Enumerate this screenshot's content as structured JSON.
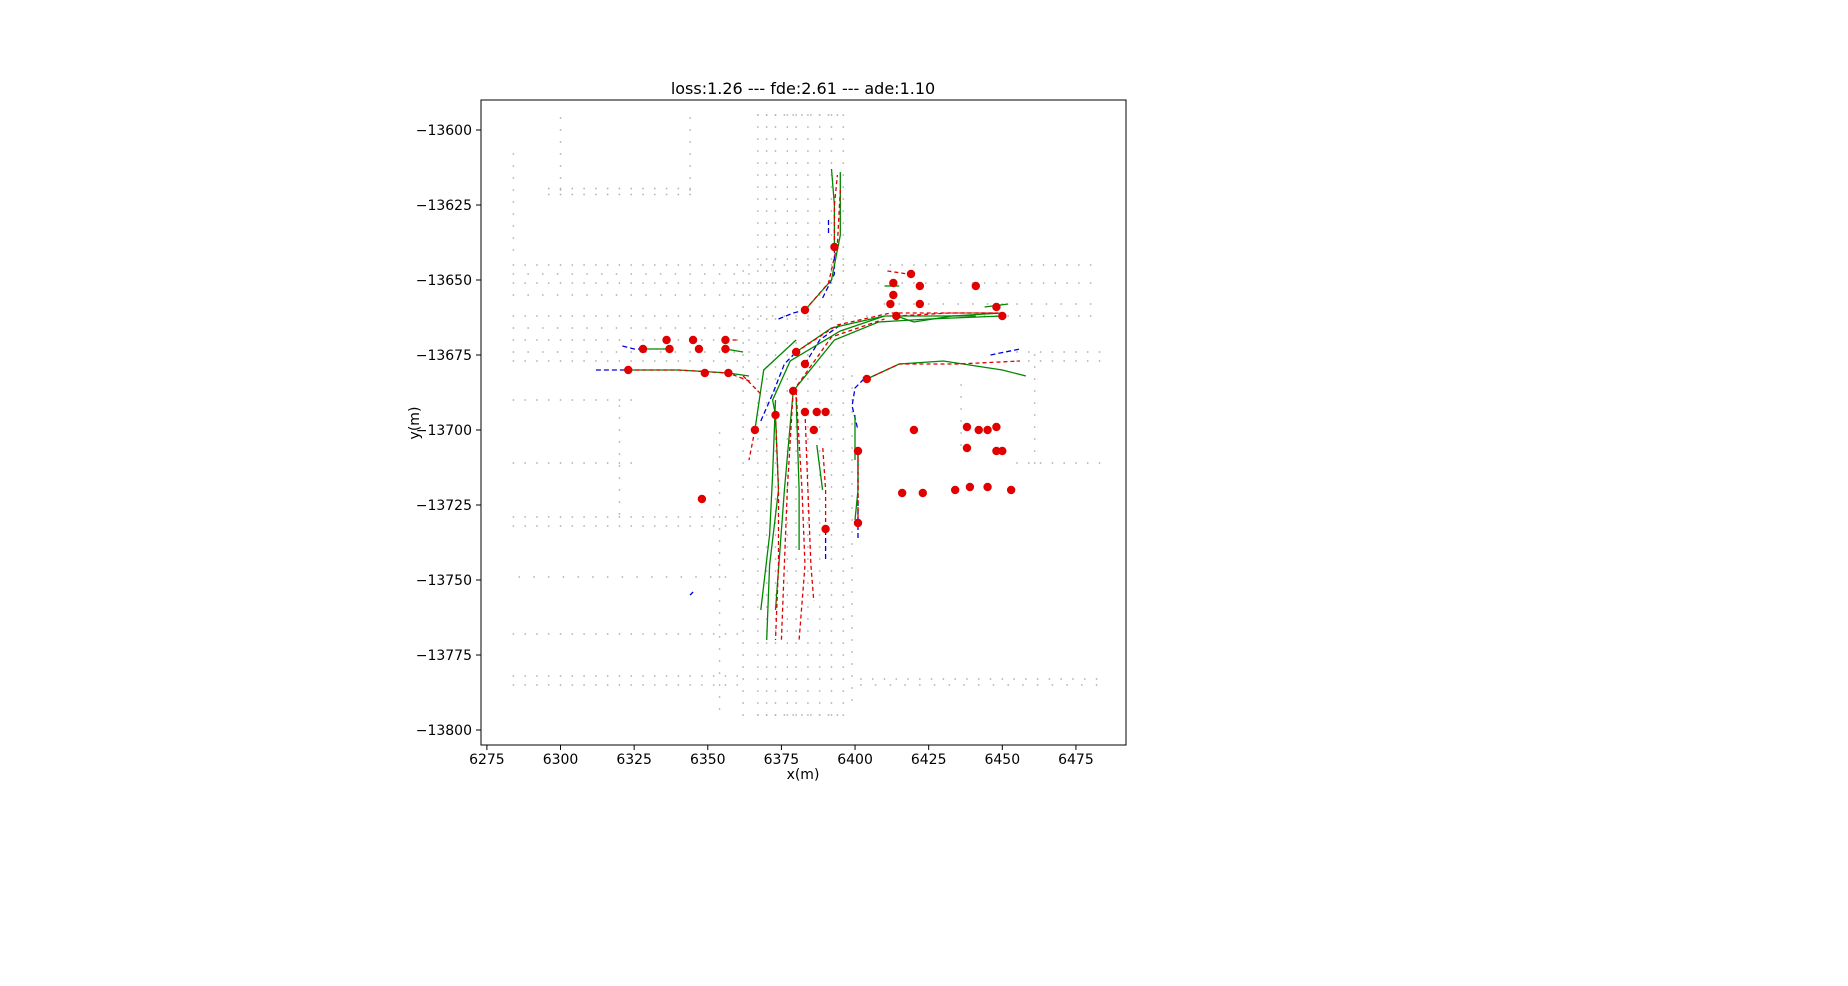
{
  "chart_data": {
    "type": "scatter",
    "title": "loss:1.26 --- fde:2.61 --- ade:1.10",
    "xlabel": "x(m)",
    "ylabel": "y(m)",
    "xlim": [
      6273,
      6492
    ],
    "ylim": [
      -13805,
      -13590
    ],
    "xticks": [
      6275,
      6300,
      6325,
      6350,
      6375,
      6400,
      6425,
      6450,
      6475
    ],
    "yticks": [
      -13600,
      -13625,
      -13650,
      -13675,
      -13700,
      -13725,
      -13750,
      -13775,
      -13800
    ],
    "grid": false,
    "colors": {
      "map": "#b0b0b0",
      "agent": "#e00000",
      "history": "#0000dd",
      "ground_truth": "#008800",
      "prediction": "#e00000"
    },
    "map_dots": {
      "x_rows": [
        {
          "y": -13645.0,
          "x_from": 6284,
          "x_to": 6483,
          "step": 4
        },
        {
          "y": -13648.0,
          "x_from": 6284,
          "x_to": 6365,
          "step": 5
        },
        {
          "y": -13651.0,
          "x_from": 6284,
          "x_to": 6483,
          "step": 4
        },
        {
          "y": -13655.0,
          "x_from": 6284,
          "x_to": 6365,
          "step": 5
        },
        {
          "y": -13658.0,
          "x_from": 6410,
          "x_to": 6483,
          "step": 5
        },
        {
          "y": -13662.0,
          "x_from": 6284,
          "x_to": 6483,
          "step": 4
        },
        {
          "y": -13666.0,
          "x_from": 6284,
          "x_to": 6365,
          "step": 5
        },
        {
          "y": -13670.0,
          "x_from": 6284,
          "x_to": 6365,
          "step": 4
        },
        {
          "y": -13674.0,
          "x_from": 6284,
          "x_to": 6365,
          "step": 5
        },
        {
          "y": -13674.0,
          "x_from": 6455,
          "x_to": 6483,
          "step": 4
        },
        {
          "y": -13677.0,
          "x_from": 6284,
          "x_to": 6365,
          "step": 4
        },
        {
          "y": -13677.0,
          "x_from": 6455,
          "x_to": 6483,
          "step": 4
        },
        {
          "y": -13690.0,
          "x_from": 6284,
          "x_to": 6325,
          "step": 4
        },
        {
          "y": -13711.0,
          "x_from": 6284,
          "x_to": 6325,
          "step": 4
        },
        {
          "y": -13711.0,
          "x_from": 6455,
          "x_to": 6483,
          "step": 4
        },
        {
          "y": -13729.0,
          "x_from": 6284,
          "x_to": 6360,
          "step": 4
        },
        {
          "y": -13732.0,
          "x_from": 6284,
          "x_to": 6360,
          "step": 4
        },
        {
          "y": -13749.0,
          "x_from": 6286,
          "x_to": 6360,
          "step": 5
        },
        {
          "y": -13768.0,
          "x_from": 6284,
          "x_to": 6360,
          "step": 4
        },
        {
          "y": -13782.0,
          "x_from": 6284,
          "x_to": 6360,
          "step": 4
        },
        {
          "y": -13785.0,
          "x_from": 6284,
          "x_to": 6360,
          "step": 4
        },
        {
          "y": -13783.0,
          "x_from": 6402,
          "x_to": 6483,
          "step": 4
        },
        {
          "y": -13785.0,
          "x_from": 6402,
          "x_to": 6483,
          "step": 5
        },
        {
          "y": -13619.5,
          "x_from": 6296,
          "x_to": 6345,
          "step": 4
        },
        {
          "y": -13621.5,
          "x_from": 6296,
          "x_to": 6345,
          "step": 4
        },
        {
          "y": -13595.0,
          "x_from": 6367,
          "x_to": 6395,
          "step": 3
        },
        {
          "y": -13795.0,
          "x_from": 6367,
          "x_to": 6395,
          "step": 3
        }
      ],
      "y_cols": [
        {
          "x": 6367.0,
          "y_from": -13795,
          "y_to": -13595,
          "step": 4
        },
        {
          "x": 6370.0,
          "y_from": -13795,
          "y_to": -13595,
          "step": 4
        },
        {
          "x": 6373.0,
          "y_from": -13795,
          "y_to": -13595,
          "step": 4
        },
        {
          "x": 6377.0,
          "y_from": -13795,
          "y_to": -13595,
          "step": 4
        },
        {
          "x": 6380.0,
          "y_from": -13795,
          "y_to": -13595,
          "step": 4
        },
        {
          "x": 6384.0,
          "y_from": -13795,
          "y_to": -13595,
          "step": 4
        },
        {
          "x": 6388.0,
          "y_from": -13795,
          "y_to": -13595,
          "step": 4
        },
        {
          "x": 6392.0,
          "y_from": -13795,
          "y_to": -13595,
          "step": 4
        },
        {
          "x": 6396.0,
          "y_from": -13795,
          "y_to": -13595,
          "step": 4
        },
        {
          "x": 6362.0,
          "y_from": -13795,
          "y_to": -13645,
          "step": 4
        },
        {
          "x": 6354.0,
          "y_from": -13793,
          "y_to": -13700,
          "step": 4
        },
        {
          "x": 6399.0,
          "y_from": -13790,
          "y_to": -13680,
          "step": 4
        },
        {
          "x": 6284.0,
          "y_from": -13640,
          "y_to": -13605,
          "step": 4
        },
        {
          "x": 6344.0,
          "y_from": -13620,
          "y_to": -13595,
          "step": 4
        },
        {
          "x": 6300.0,
          "y_from": -13620,
          "y_to": -13595,
          "step": 4
        },
        {
          "x": 6320.0,
          "y_from": -13728,
          "y_to": -13690,
          "step": 4
        },
        {
          "x": 6461.0,
          "y_from": -13711,
          "y_to": -13672,
          "step": 4
        },
        {
          "x": 6436.0,
          "y_from": -13705,
          "y_to": -13683,
          "step": 4
        }
      ]
    },
    "agents": [
      [
        6393,
        -13639
      ],
      [
        6383,
        -13660
      ],
      [
        6380,
        -13674
      ],
      [
        6383,
        -13678
      ],
      [
        6379,
        -13687
      ],
      [
        6373,
        -13695
      ],
      [
        6366,
        -13700
      ],
      [
        6328,
        -13673
      ],
      [
        6337,
        -13673
      ],
      [
        6336,
        -13670
      ],
      [
        6345,
        -13670
      ],
      [
        6347,
        -13673
      ],
      [
        6356,
        -13670
      ],
      [
        6356,
        -13673
      ],
      [
        6323,
        -13680
      ],
      [
        6349,
        -13681
      ],
      [
        6357,
        -13681
      ],
      [
        6401,
        -13707
      ],
      [
        6401,
        -13731
      ],
      [
        6390,
        -13733
      ],
      [
        6383,
        -13694
      ],
      [
        6387,
        -13694
      ],
      [
        6390,
        -13694
      ],
      [
        6386,
        -13700
      ],
      [
        6348,
        -13723
      ],
      [
        6419,
        -13648
      ],
      [
        6413,
        -13651
      ],
      [
        6422,
        -13652
      ],
      [
        6441,
        -13652
      ],
      [
        6413,
        -13655
      ],
      [
        6412,
        -13658
      ],
      [
        6422,
        -13658
      ],
      [
        6414,
        -13662
      ],
      [
        6448,
        -13659
      ],
      [
        6450,
        -13662
      ],
      [
        6404,
        -13683
      ],
      [
        6420,
        -13700
      ],
      [
        6438,
        -13699
      ],
      [
        6442,
        -13700
      ],
      [
        6445,
        -13700
      ],
      [
        6448,
        -13699
      ],
      [
        6438,
        -13706
      ],
      [
        6448,
        -13707
      ],
      [
        6450,
        -13707
      ],
      [
        6416,
        -13721
      ],
      [
        6423,
        -13721
      ],
      [
        6434,
        -13720
      ],
      [
        6439,
        -13719
      ],
      [
        6445,
        -13719
      ],
      [
        6453,
        -13720
      ]
    ],
    "history_tracks": [
      [
        [
          6389,
          -13656
        ],
        [
          6393,
          -13648
        ],
        [
          6393,
          -13639
        ]
      ],
      [
        [
          6374,
          -13663
        ],
        [
          6379,
          -13661
        ],
        [
          6383,
          -13660
        ]
      ],
      [
        [
          6391,
          -13630
        ],
        [
          6391,
          -13635
        ]
      ],
      [
        [
          6312,
          -13680
        ],
        [
          6317,
          -13680
        ],
        [
          6323,
          -13680
        ]
      ],
      [
        [
          6321,
          -13672
        ],
        [
          6325,
          -13673
        ],
        [
          6328,
          -13673
        ]
      ],
      [
        [
          6368,
          -13697
        ],
        [
          6372,
          -13688
        ],
        [
          6376,
          -13678
        ],
        [
          6380,
          -13674
        ]
      ],
      [
        [
          6383,
          -13678
        ],
        [
          6388,
          -13670
        ],
        [
          6395,
          -13665
        ]
      ],
      [
        [
          6401,
          -13736
        ],
        [
          6401,
          -13720
        ],
        [
          6401,
          -13707
        ]
      ],
      [
        [
          6403,
          -13683
        ],
        [
          6400,
          -13686
        ],
        [
          6399,
          -13692
        ],
        [
          6401,
          -13700
        ]
      ],
      [
        [
          6390,
          -13743
        ],
        [
          6390,
          -13736
        ],
        [
          6390,
          -13733
        ]
      ],
      [
        [
          6344,
          -13755
        ],
        [
          6345,
          -13754
        ]
      ],
      [
        [
          6446,
          -13675
        ],
        [
          6456,
          -13673
        ]
      ]
    ],
    "ground_truth_tracks": [
      [
        [
          6393,
          -13639
        ],
        [
          6393,
          -13625
        ],
        [
          6392,
          -13613
        ]
      ],
      [
        [
          6383,
          -13660
        ],
        [
          6392,
          -13650
        ],
        [
          6395,
          -13635
        ],
        [
          6395,
          -13614
        ]
      ],
      [
        [
          6380,
          -13674
        ],
        [
          6392,
          -13666
        ],
        [
          6410,
          -13662
        ],
        [
          6425,
          -13662
        ],
        [
          6441,
          -13662
        ]
      ],
      [
        [
          6379,
          -13687
        ],
        [
          6393,
          -13670
        ],
        [
          6408,
          -13664
        ],
        [
          6425,
          -13663
        ],
        [
          6450,
          -13662
        ]
      ],
      [
        [
          6373,
          -13695
        ],
        [
          6372,
          -13690
        ],
        [
          6378,
          -13677
        ],
        [
          6395,
          -13667
        ],
        [
          6410,
          -13662
        ]
      ],
      [
        [
          6373,
          -13695
        ],
        [
          6374,
          -13720
        ],
        [
          6371,
          -13745
        ],
        [
          6370,
          -13770
        ]
      ],
      [
        [
          6379,
          -13687
        ],
        [
          6376,
          -13720
        ],
        [
          6373,
          -13760
        ]
      ],
      [
        [
          6380,
          -13689
        ],
        [
          6381,
          -13720
        ],
        [
          6381,
          -13740
        ]
      ],
      [
        [
          6373,
          -13690
        ],
        [
          6372,
          -13715
        ],
        [
          6371,
          -13735
        ],
        [
          6368,
          -13760
        ]
      ],
      [
        [
          6366,
          -13700
        ],
        [
          6369,
          -13680
        ],
        [
          6380,
          -13670
        ]
      ],
      [
        [
          6323,
          -13680
        ],
        [
          6340,
          -13680
        ],
        [
          6357,
          -13681
        ],
        [
          6364,
          -13682
        ]
      ],
      [
        [
          6328,
          -13673
        ],
        [
          6337,
          -13673
        ]
      ],
      [
        [
          6356,
          -13673
        ],
        [
          6362,
          -13674
        ]
      ],
      [
        [
          6404,
          -13683
        ],
        [
          6415,
          -13678
        ],
        [
          6430,
          -13677
        ],
        [
          6450,
          -13680
        ],
        [
          6458,
          -13682
        ]
      ],
      [
        [
          6401,
          -13707
        ],
        [
          6401,
          -13720
        ],
        [
          6400,
          -13730
        ]
      ],
      [
        [
          6400,
          -13695
        ],
        [
          6400,
          -13710
        ]
      ],
      [
        [
          6387,
          -13705
        ],
        [
          6389,
          -13720
        ]
      ],
      [
        [
          6414,
          -13662
        ],
        [
          6420,
          -13664
        ],
        [
          6433,
          -13662
        ],
        [
          6450,
          -13661
        ]
      ],
      [
        [
          6444,
          -13659
        ],
        [
          6452,
          -13658
        ]
      ],
      [
        [
          6410,
          -13652
        ],
        [
          6415,
          -13652
        ]
      ]
    ],
    "prediction_tracks": [
      [
        [
          6393,
          -13639
        ],
        [
          6393,
          -13625
        ],
        [
          6394,
          -13615
        ]
      ],
      [
        [
          6383,
          -13660
        ],
        [
          6391,
          -13651
        ],
        [
          6394,
          -13638
        ],
        [
          6395,
          -13620
        ]
      ],
      [
        [
          6380,
          -13674
        ],
        [
          6394,
          -13665
        ],
        [
          6412,
          -13661
        ],
        [
          6430,
          -13661
        ],
        [
          6448,
          -13661
        ]
      ],
      [
        [
          6379,
          -13687
        ],
        [
          6392,
          -13669
        ],
        [
          6410,
          -13663
        ]
      ],
      [
        [
          6373,
          -13695
        ],
        [
          6374,
          -13720
        ],
        [
          6374,
          -13745
        ],
        [
          6373,
          -13770
        ]
      ],
      [
        [
          6379,
          -13687
        ],
        [
          6377,
          -13720
        ],
        [
          6375,
          -13770
        ]
      ],
      [
        [
          6380,
          -13687
        ],
        [
          6382,
          -13720
        ],
        [
          6383,
          -13745
        ],
        [
          6381,
          -13770
        ]
      ],
      [
        [
          6383,
          -13694
        ],
        [
          6384,
          -13720
        ],
        [
          6385,
          -13745
        ],
        [
          6386,
          -13757
        ]
      ],
      [
        [
          6366,
          -13700
        ],
        [
          6364,
          -13710
        ]
      ],
      [
        [
          6323,
          -13680
        ],
        [
          6340,
          -13680
        ],
        [
          6357,
          -13681
        ],
        [
          6365,
          -13684
        ]
      ],
      [
        [
          6404,
          -13683
        ],
        [
          6415,
          -13678
        ],
        [
          6435,
          -13678
        ],
        [
          6456,
          -13677
        ]
      ],
      [
        [
          6401,
          -13707
        ],
        [
          6401,
          -13720
        ],
        [
          6401,
          -13730
        ]
      ],
      [
        [
          6390,
          -13733
        ],
        [
          6390,
          -13720
        ],
        [
          6389,
          -13705
        ]
      ],
      [
        [
          6414,
          -13662
        ],
        [
          6432,
          -13661
        ],
        [
          6450,
          -13661
        ]
      ],
      [
        [
          6411,
          -13647
        ],
        [
          6418,
          -13648
        ]
      ],
      [
        [
          6356,
          -13670
        ],
        [
          6360,
          -13670
        ]
      ],
      [
        [
          6362,
          -13682
        ],
        [
          6368,
          -13688
        ]
      ]
    ]
  }
}
